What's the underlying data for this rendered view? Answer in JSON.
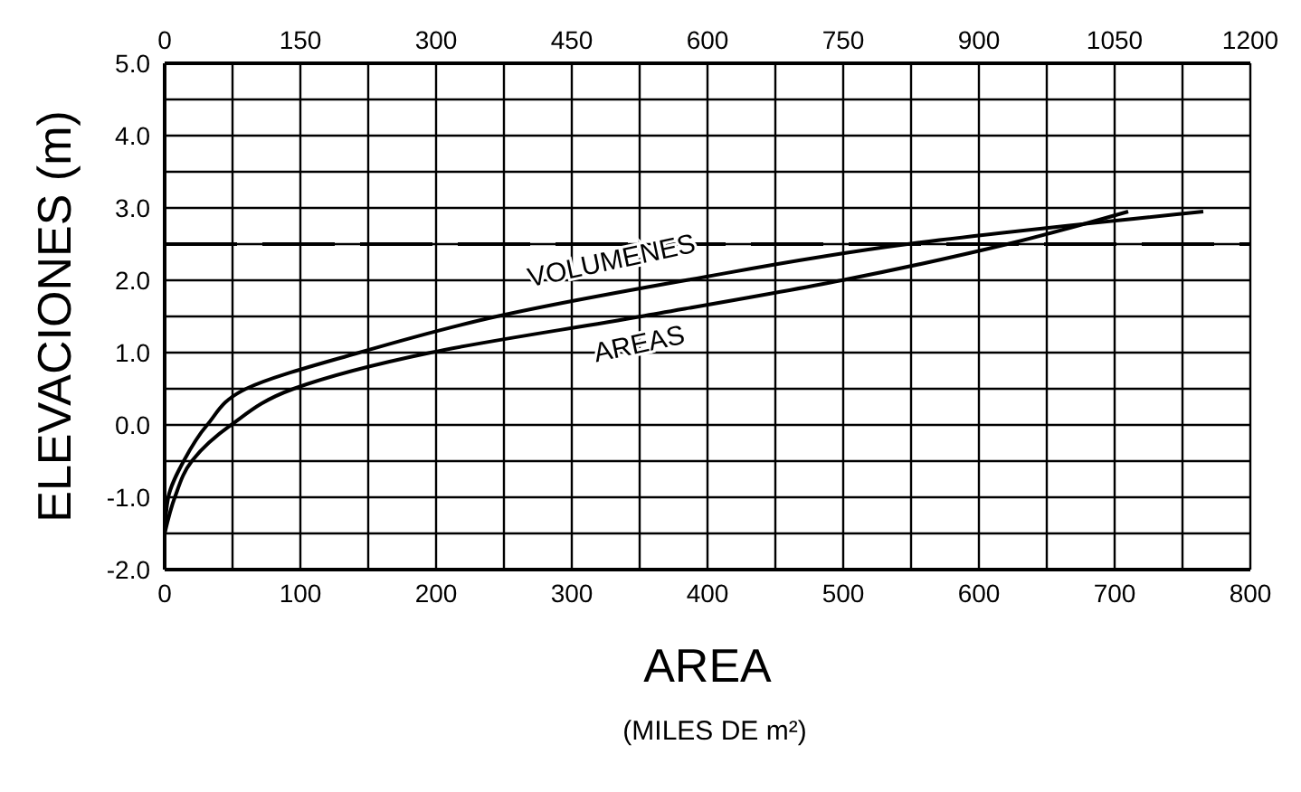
{
  "chart_data": {
    "type": "line",
    "xlabel": "AREA",
    "ylabel": "ELEVACIONES (m)",
    "annotations": [
      "(MILES DE m²)"
    ],
    "xlim": [
      0,
      800
    ],
    "xticks": [
      0,
      {
        "value": 50,
        "label": null
      },
      100,
      {
        "value": 150,
        "label": null
      },
      200,
      {
        "value": 250,
        "label": null
      },
      300,
      {
        "value": 350,
        "label": null
      },
      400,
      {
        "value": 450,
        "label": null
      },
      500,
      {
        "value": 550,
        "label": null
      },
      600,
      {
        "value": 650,
        "label": null
      },
      700,
      {
        "value": 750,
        "label": null
      },
      800
    ],
    "x2lim": [
      0,
      1200
    ],
    "x2ticks": [
      0,
      150,
      300,
      450,
      600,
      750,
      900,
      1050,
      1200
    ],
    "ylim": [
      -2,
      5
    ],
    "yticks": [
      {
        "value": -2,
        "label": "-2.0"
      },
      {
        "value": -1.5,
        "label": null
      },
      {
        "value": -1,
        "label": "-1.0"
      },
      {
        "value": -0.5,
        "label": null
      },
      {
        "value": 0,
        "label": "0.0"
      },
      {
        "value": 0.5,
        "label": null
      },
      {
        "value": 1,
        "label": "1.0"
      },
      {
        "value": 1.5,
        "label": null
      },
      {
        "value": 2,
        "label": "2.0"
      },
      {
        "value": 2.5,
        "label": null
      },
      {
        "value": 3,
        "label": "3.0"
      },
      {
        "value": 3.5,
        "label": null
      },
      {
        "value": 4,
        "label": "4.0"
      },
      {
        "value": 4.5,
        "label": null
      },
      {
        "value": 5,
        "label": "5.0"
      }
    ],
    "grid": true,
    "marker": "none",
    "line_style": "solid",
    "ref_lines": [
      {
        "axis": "y",
        "value": 2.5,
        "color": "#000000",
        "line_style": "dashed"
      }
    ],
    "series": [
      {
        "name": "VOLUMENES",
        "color": "#000000",
        "axis": "x2",
        "x": [
          0,
          4,
          21,
          47,
          90,
          215,
          367,
          576,
          821,
          1148
        ],
        "values": [
          -1.5,
          -1.0,
          -0.5,
          0.0,
          0.5,
          1.0,
          1.5,
          2.0,
          2.5,
          2.95
        ]
      },
      {
        "name": "AREAS",
        "color": "#000000",
        "x": [
          0,
          7.5,
          20,
          49,
          95,
          196,
          351,
          499,
          621,
          710
        ],
        "values": [
          -1.5,
          -1.0,
          -0.5,
          0.0,
          0.5,
          1.0,
          1.5,
          2.0,
          2.5,
          2.95
        ]
      }
    ]
  }
}
